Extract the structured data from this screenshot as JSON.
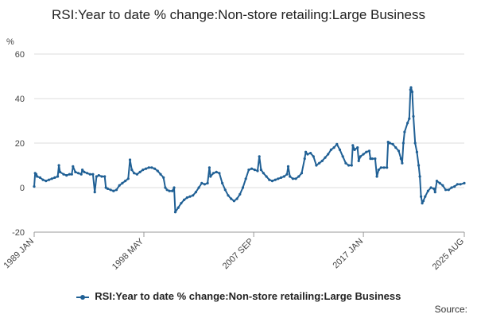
{
  "chart_data": {
    "type": "line",
    "title": "RSI:Year to date % change:Non-store retailing:Large Business",
    "ylabel": "%",
    "ylim": [
      -20,
      60
    ],
    "yticks": [
      -20,
      0,
      20,
      40,
      60
    ],
    "xlim": [
      1989.0,
      2025.58
    ],
    "xticks": [
      {
        "label": "1989 JAN",
        "x": 1989.0
      },
      {
        "label": "1998 MAY",
        "x": 1998.33
      },
      {
        "label": "2007 SEP",
        "x": 2007.67
      },
      {
        "label": "2017 JAN",
        "x": 2017.0
      },
      {
        "label": "2025 AUG",
        "x": 2025.58
      }
    ],
    "grid": true,
    "legend_position": "bottom",
    "series": [
      {
        "name": "RSI:Year to date % change:Non-store retailing:Large Business",
        "color": "#206095",
        "points": [
          [
            1989.0,
            0.5
          ],
          [
            1989.08,
            6.5
          ],
          [
            1989.17,
            6
          ],
          [
            1989.25,
            5
          ],
          [
            1989.5,
            4.5
          ],
          [
            1989.75,
            3.5
          ],
          [
            1990.0,
            3
          ],
          [
            1990.25,
            3.5
          ],
          [
            1990.5,
            4
          ],
          [
            1990.75,
            4.5
          ],
          [
            1991.0,
            5
          ],
          [
            1991.1,
            10
          ],
          [
            1991.2,
            7
          ],
          [
            1991.5,
            6
          ],
          [
            1991.75,
            5.5
          ],
          [
            1992.0,
            6
          ],
          [
            1992.2,
            6
          ],
          [
            1992.3,
            9.5
          ],
          [
            1992.5,
            7
          ],
          [
            1992.75,
            6.5
          ],
          [
            1993.0,
            6
          ],
          [
            1993.1,
            8
          ],
          [
            1993.25,
            7
          ],
          [
            1993.5,
            6.5
          ],
          [
            1993.75,
            6
          ],
          [
            1994.0,
            6
          ],
          [
            1994.15,
            -2
          ],
          [
            1994.3,
            5
          ],
          [
            1994.5,
            5.5
          ],
          [
            1994.75,
            5
          ],
          [
            1995.0,
            5
          ],
          [
            1995.1,
            0
          ],
          [
            1995.25,
            -0.5
          ],
          [
            1995.5,
            -1
          ],
          [
            1995.75,
            -1.5
          ],
          [
            1996.0,
            -1
          ],
          [
            1996.25,
            1
          ],
          [
            1996.5,
            2
          ],
          [
            1996.75,
            3
          ],
          [
            1997.0,
            4
          ],
          [
            1997.15,
            12.5
          ],
          [
            1997.3,
            8
          ],
          [
            1997.5,
            6.5
          ],
          [
            1997.75,
            6
          ],
          [
            1998.0,
            7
          ],
          [
            1998.25,
            8
          ],
          [
            1998.5,
            8.5
          ],
          [
            1998.75,
            9
          ],
          [
            1999.0,
            9
          ],
          [
            1999.25,
            8.5
          ],
          [
            1999.5,
            7.5
          ],
          [
            1999.75,
            6
          ],
          [
            2000.0,
            4.5
          ],
          [
            2000.15,
            0
          ],
          [
            2000.3,
            -1
          ],
          [
            2000.5,
            -1.5
          ],
          [
            2000.75,
            -1.5
          ],
          [
            2000.9,
            0
          ],
          [
            2001.0,
            -11
          ],
          [
            2001.25,
            -9
          ],
          [
            2001.5,
            -7
          ],
          [
            2001.75,
            -5.5
          ],
          [
            2002.0,
            -4.5
          ],
          [
            2002.25,
            -4
          ],
          [
            2002.5,
            -3.5
          ],
          [
            2002.75,
            -2
          ],
          [
            2003.0,
            0
          ],
          [
            2003.25,
            2
          ],
          [
            2003.5,
            1.5
          ],
          [
            2003.75,
            2
          ],
          [
            2003.9,
            9
          ],
          [
            2004.0,
            5
          ],
          [
            2004.25,
            6.5
          ],
          [
            2004.5,
            7
          ],
          [
            2004.75,
            6.5
          ],
          [
            2005.0,
            2
          ],
          [
            2005.25,
            -1
          ],
          [
            2005.5,
            -3.5
          ],
          [
            2005.75,
            -5
          ],
          [
            2006.0,
            -6
          ],
          [
            2006.25,
            -5
          ],
          [
            2006.5,
            -3
          ],
          [
            2006.75,
            0
          ],
          [
            2007.0,
            4
          ],
          [
            2007.25,
            8
          ],
          [
            2007.5,
            8.5
          ],
          [
            2007.75,
            8
          ],
          [
            2008.0,
            7.5
          ],
          [
            2008.15,
            14
          ],
          [
            2008.3,
            8
          ],
          [
            2008.5,
            6.5
          ],
          [
            2008.75,
            5
          ],
          [
            2009.0,
            3.5
          ],
          [
            2009.25,
            3
          ],
          [
            2009.5,
            3.5
          ],
          [
            2009.75,
            4
          ],
          [
            2010.0,
            4.5
          ],
          [
            2010.25,
            5
          ],
          [
            2010.5,
            6
          ],
          [
            2010.6,
            9.5
          ],
          [
            2010.75,
            5
          ],
          [
            2011.0,
            4
          ],
          [
            2011.25,
            4
          ],
          [
            2011.5,
            5
          ],
          [
            2011.75,
            6.5
          ],
          [
            2012.0,
            13
          ],
          [
            2012.1,
            16
          ],
          [
            2012.25,
            15
          ],
          [
            2012.5,
            15.5
          ],
          [
            2012.75,
            14
          ],
          [
            2013.0,
            10
          ],
          [
            2013.25,
            11
          ],
          [
            2013.5,
            12
          ],
          [
            2013.75,
            13.5
          ],
          [
            2014.0,
            15
          ],
          [
            2014.25,
            17
          ],
          [
            2014.5,
            18
          ],
          [
            2014.75,
            19.5
          ],
          [
            2015.0,
            17
          ],
          [
            2015.25,
            14
          ],
          [
            2015.5,
            11
          ],
          [
            2015.75,
            10
          ],
          [
            2016.0,
            10
          ],
          [
            2016.1,
            19
          ],
          [
            2016.25,
            17
          ],
          [
            2016.5,
            18
          ],
          [
            2016.6,
            12
          ],
          [
            2016.75,
            14
          ],
          [
            2017.0,
            15
          ],
          [
            2017.25,
            16
          ],
          [
            2017.5,
            16.5
          ],
          [
            2017.6,
            13
          ],
          [
            2017.75,
            13
          ],
          [
            2018.0,
            13
          ],
          [
            2018.15,
            5
          ],
          [
            2018.3,
            8
          ],
          [
            2018.5,
            9
          ],
          [
            2018.75,
            9
          ],
          [
            2019.0,
            9
          ],
          [
            2019.1,
            20.5
          ],
          [
            2019.25,
            20
          ],
          [
            2019.5,
            19.5
          ],
          [
            2019.75,
            18
          ],
          [
            2020.0,
            16.5
          ],
          [
            2020.2,
            13
          ],
          [
            2020.3,
            11
          ],
          [
            2020.4,
            20
          ],
          [
            2020.5,
            25
          ],
          [
            2020.75,
            29
          ],
          [
            2020.9,
            31
          ],
          [
            2021.0,
            44
          ],
          [
            2021.05,
            45
          ],
          [
            2021.15,
            43
          ],
          [
            2021.25,
            32
          ],
          [
            2021.4,
            20
          ],
          [
            2021.55,
            16
          ],
          [
            2021.7,
            10
          ],
          [
            2021.8,
            5
          ],
          [
            2021.9,
            -4
          ],
          [
            2022.0,
            -7
          ],
          [
            2022.1,
            -6
          ],
          [
            2022.25,
            -4
          ],
          [
            2022.5,
            -1.5
          ],
          [
            2022.75,
            0
          ],
          [
            2023.0,
            -0.5
          ],
          [
            2023.1,
            -2
          ],
          [
            2023.25,
            3
          ],
          [
            2023.5,
            2
          ],
          [
            2023.75,
            1
          ],
          [
            2024.0,
            -1
          ],
          [
            2024.25,
            -1
          ],
          [
            2024.5,
            0
          ],
          [
            2024.75,
            0.5
          ],
          [
            2025.0,
            1.5
          ],
          [
            2025.25,
            1.5
          ],
          [
            2025.58,
            2
          ]
        ]
      }
    ]
  },
  "legend": {
    "label": "RSI:Year to date % change:Non-store retailing:Large Business"
  },
  "footer": {
    "source": "Source:"
  }
}
